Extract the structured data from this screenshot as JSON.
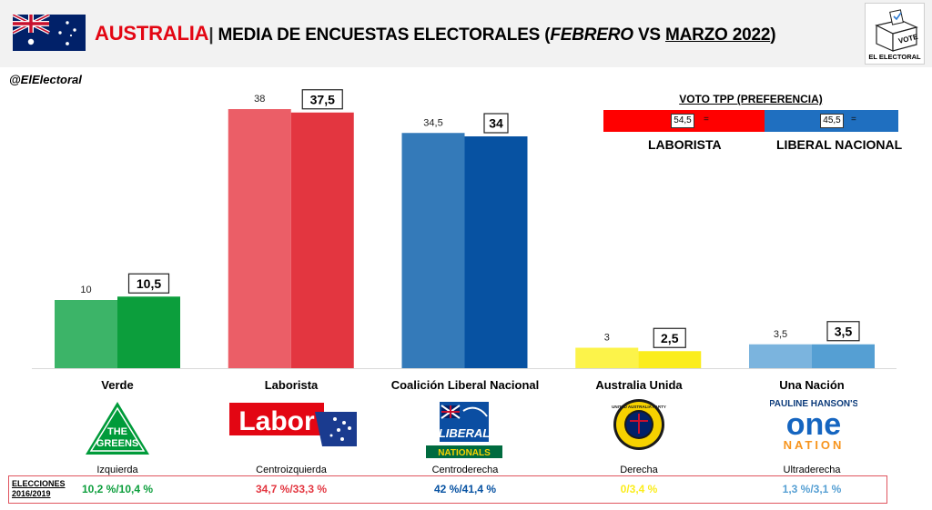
{
  "header": {
    "country": "AUSTRALIA",
    "separator": "|",
    "title_main": "MEDIA DE ENCUESTAS ELECTORALES (",
    "title_month1": "FEBRERO",
    "title_vs": " VS ",
    "title_month2": "MARZO 2022",
    "title_close": ")"
  },
  "brand": {
    "label": "EL ELECTORAL",
    "box_text": "VOTE"
  },
  "handle": "@ElElectoral",
  "chart_data": {
    "type": "bar",
    "categories": [
      "Verde",
      "Laborista",
      "Coalición Liberal Nacional",
      "Australia Unida",
      "Una Nación"
    ],
    "series": [
      {
        "values": [
          10,
          38,
          34.5,
          3,
          3.5
        ],
        "labels": [
          "10",
          "38",
          "34,5",
          "3",
          "3,5"
        ]
      },
      {
        "values": [
          10.5,
          37.5,
          34,
          2.5,
          3.5
        ],
        "labels": [
          "10,5",
          "37,5",
          "34",
          "2,5",
          "3,5"
        ]
      }
    ],
    "colors": {
      "feb": [
        "#3cb468",
        "#eb5e67",
        "#347ab9",
        "#fcf34a",
        "#7bb4de"
      ],
      "mar": [
        "#0c9e3c",
        "#e33640",
        "#0752a2",
        "#fbed1c",
        "#559fd3"
      ]
    },
    "ylim": [
      0,
      42
    ]
  },
  "spectrum": [
    "Izquierda",
    "Centroizquierda",
    "Centroderecha",
    "Derecha",
    "Ultraderecha"
  ],
  "elections": {
    "label_line1": "ELECCIONES",
    "label_line2": "2016/2019",
    "values": [
      "10,2 %/10,4 %",
      "34,7 %/33,3 %",
      "42 %/41,4 %",
      "0/3,4 %",
      "1,3 %/3,1 %"
    ],
    "colors": [
      "#0c9e3c",
      "#e33640",
      "#0752a2",
      "#fbed1c",
      "#559fd3"
    ]
  },
  "tpp": {
    "title": "VOTO TPP (PREFERENCIA)",
    "left": {
      "name": "LABORISTA",
      "value": "54,5",
      "share": 54.5,
      "color": "#ff0000"
    },
    "right": {
      "name": "LIBERAL NACIONAL",
      "value": "45,5",
      "share": 45.5,
      "color": "#1f6fc0"
    },
    "eq_symbol": "="
  },
  "logos": {
    "greens": [
      "THE",
      "GREENS"
    ],
    "labor": "Labor",
    "liberal": "LIBERAL",
    "nationals": "NATIONALS",
    "uap": "UNITED AUSTRALIA PARTY",
    "one_nation_top": "PAULINE HANSON'S",
    "one_nation_one": "one",
    "one_nation_nation": "NATION"
  }
}
